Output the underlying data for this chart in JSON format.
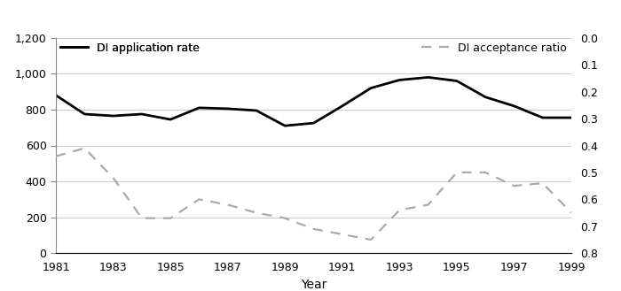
{
  "years": [
    1981,
    1982,
    1983,
    1984,
    1985,
    1986,
    1987,
    1988,
    1989,
    1990,
    1991,
    1992,
    1993,
    1994,
    1995,
    1996,
    1997,
    1998,
    1999
  ],
  "application_rate": [
    880,
    775,
    765,
    775,
    745,
    810,
    805,
    795,
    710,
    725,
    820,
    920,
    965,
    980,
    960,
    870,
    820,
    755,
    755
  ],
  "acceptance_ratio": [
    0.44,
    0.41,
    0.52,
    0.67,
    0.67,
    0.6,
    0.62,
    0.65,
    0.67,
    0.71,
    0.73,
    0.75,
    0.64,
    0.62,
    0.5,
    0.5,
    0.55,
    0.54,
    0.65
  ],
  "app_color": "#000000",
  "ratio_color": "#aaaaaa",
  "left_ylim": [
    0,
    1200
  ],
  "right_ylim": [
    0.8,
    0.0
  ],
  "left_yticks": [
    0,
    200,
    400,
    600,
    800,
    1000,
    1200
  ],
  "right_yticks": [
    0.0,
    0.1,
    0.2,
    0.3,
    0.4,
    0.5,
    0.6,
    0.7,
    0.8
  ],
  "xlabel": "Year",
  "legend_app": "DI application rate",
  "legend_ratio": "DI acceptance ratio",
  "bg_color": "#ffffff",
  "grid_color": "#cccccc"
}
